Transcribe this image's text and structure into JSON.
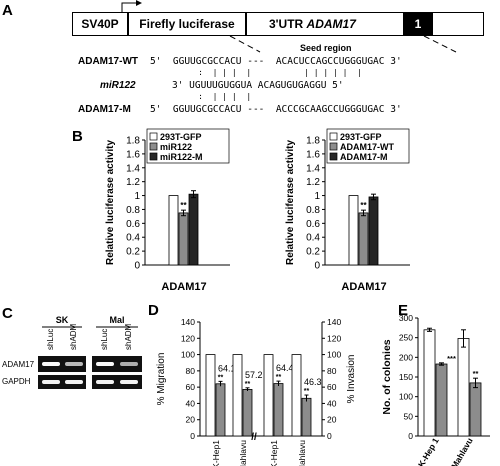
{
  "panels": {
    "a": "A",
    "b": "B",
    "c": "C",
    "d": "D",
    "e": "E"
  },
  "construct": {
    "promoter": "SV40P",
    "reporter": "Firefly luciferase",
    "utr_prefix": "3'UTR ",
    "utr_gene": "ADAM17",
    "site": "1",
    "seed_region": "Seed region"
  },
  "sequences": [
    {
      "label": "ADAM17-WT",
      "seq": "5'  GGUUGCGCCACU ---  ACACUCCAGCCUGGGUGAC 3'",
      "italic": false
    },
    {
      "label": "",
      "seq": "          :  | | |  |           | | | | |  |",
      "italic": false
    },
    {
      "label": "miR122",
      "seq": "3' UGUUUGUGGUA ACAGUGUGAGGU 5'",
      "italic": true
    },
    {
      "label": "",
      "seq": "          :  | | |  |",
      "italic": false
    },
    {
      "label": "ADAM17-M",
      "seq": "5'  GGUUGCGCCACU ---  ACCCGCAAGCCUGGGUGAC 3'",
      "italic": false
    }
  ],
  "chart_data": [
    {
      "type": "bar",
      "panel": "B-left",
      "categories": [
        "ADAM17"
      ],
      "xlabel": "ADAM17",
      "ylabel": "Relative luciferase activity",
      "ylim": [
        0,
        1.8
      ],
      "yticks": [
        "0",
        "0.2",
        "0.4",
        "0.6",
        "0.8",
        "1",
        "1.2",
        "1.4",
        "1.6",
        "1.8"
      ],
      "series": [
        {
          "name": "293T-GFP",
          "values": [
            1.0
          ],
          "error": [
            0.0
          ],
          "color": "#ffffff"
        },
        {
          "name": "miR122",
          "values": [
            0.75
          ],
          "error": [
            0.04
          ],
          "color": "#8c8c8c"
        },
        {
          "name": "miR122-M",
          "values": [
            1.02
          ],
          "error": [
            0.05
          ],
          "color": "#262626"
        }
      ],
      "annotations": [
        "**"
      ],
      "legend": "top"
    },
    {
      "type": "bar",
      "panel": "B-right",
      "categories": [
        "ADAM17"
      ],
      "xlabel": "ADAM17",
      "ylabel": "Relative luciferase activity",
      "ylim": [
        0,
        1.8
      ],
      "yticks": [
        "0",
        "0.2",
        "0.4",
        "0.6",
        "0.8",
        "1",
        "1.2",
        "1.4",
        "1.6",
        "1.8"
      ],
      "series": [
        {
          "name": "293T-GFP",
          "values": [
            1.0
          ],
          "error": [
            0.0
          ],
          "color": "#ffffff"
        },
        {
          "name": "ADAM17-WT",
          "values": [
            0.75
          ],
          "error": [
            0.04
          ],
          "color": "#8c8c8c"
        },
        {
          "name": "ADAM17-M",
          "values": [
            0.98
          ],
          "error": [
            0.04
          ],
          "color": "#262626"
        }
      ],
      "annotations": [
        "**"
      ],
      "legend": "top"
    },
    {
      "type": "bar",
      "panel": "D",
      "categories": [
        "SK-Hep1",
        "Mahlavu",
        "SK-Hep1",
        "Mahlavu"
      ],
      "ylabel_left": "% Migration",
      "ylabel_right": "% Invasion",
      "ylim": [
        0,
        140
      ],
      "yticks": [
        "0",
        "20",
        "40",
        "60",
        "80",
        "100",
        "120",
        "140"
      ],
      "series": [
        {
          "name": "shLuc",
          "values": [
            100,
            100,
            100,
            100
          ],
          "color": "#ffffff"
        },
        {
          "name": "shADM",
          "values": [
            64.1,
            57.2,
            64.4,
            46.3
          ],
          "error": [
            3,
            2,
            3,
            4
          ],
          "color": "#8c8c8c"
        }
      ],
      "data_labels": [
        "64.1",
        "57.2",
        "64.4",
        "46.3"
      ],
      "annotations": [
        "**",
        "**",
        "**",
        "**"
      ],
      "axis_break": "//"
    },
    {
      "type": "bar",
      "panel": "E",
      "categories": [
        "SK-Hep 1",
        "Mahlavu"
      ],
      "ylabel": "No. of colonies",
      "ylim": [
        0,
        300
      ],
      "yticks": [
        "0",
        "50",
        "100",
        "150",
        "200",
        "250",
        "300"
      ],
      "series": [
        {
          "name": "shLuc",
          "values": [
            270,
            248
          ],
          "error": [
            4,
            22
          ],
          "color": "#ffffff"
        },
        {
          "name": "shADM",
          "values": [
            183,
            135
          ],
          "error": [
            3,
            12
          ],
          "color": "#8c8c8c"
        }
      ],
      "annotations": [
        "***",
        "**"
      ]
    }
  ],
  "blot": {
    "groups": [
      "SK",
      "Mal"
    ],
    "lanes": [
      "shLuc",
      "shADM",
      "shLuc",
      "shADM"
    ],
    "rows": [
      "ADAM17",
      "GAPDH"
    ]
  }
}
